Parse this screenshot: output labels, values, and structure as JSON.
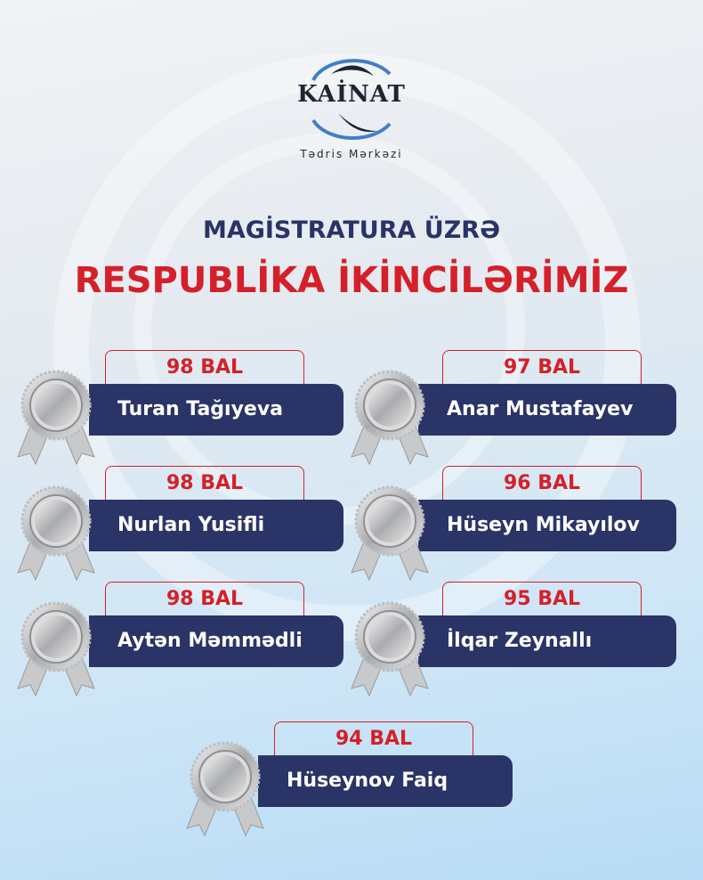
{
  "logo": {
    "word": "KAİNAT",
    "subtitle": "Tədris Mərkəzi"
  },
  "heading": {
    "line1": "MAGİSTRATURA ÜZRƏ",
    "line2": "RESPUBLİKA İKİNCİLƏRİMİZ"
  },
  "colors": {
    "navy": "#2a3467",
    "red": "#d4202a",
    "logo_blue": "#3f7fc9"
  },
  "medal_icon": "silver-medal-icon",
  "students": [
    {
      "name": "Turan Tağıyeva",
      "score": "98 BAL"
    },
    {
      "name": "Anar Mustafayev",
      "score": "97 BAL"
    },
    {
      "name": "Nurlan Yusifli",
      "score": "98 BAL"
    },
    {
      "name": "Hüseyn Mikayılov",
      "score": "96 BAL"
    },
    {
      "name": "Aytən Məmmədli",
      "score": "98 BAL"
    },
    {
      "name": "İlqar Zeynallı",
      "score": "95 BAL"
    },
    {
      "name": "Hüseynov Faiq",
      "score": "94 BAL"
    }
  ]
}
